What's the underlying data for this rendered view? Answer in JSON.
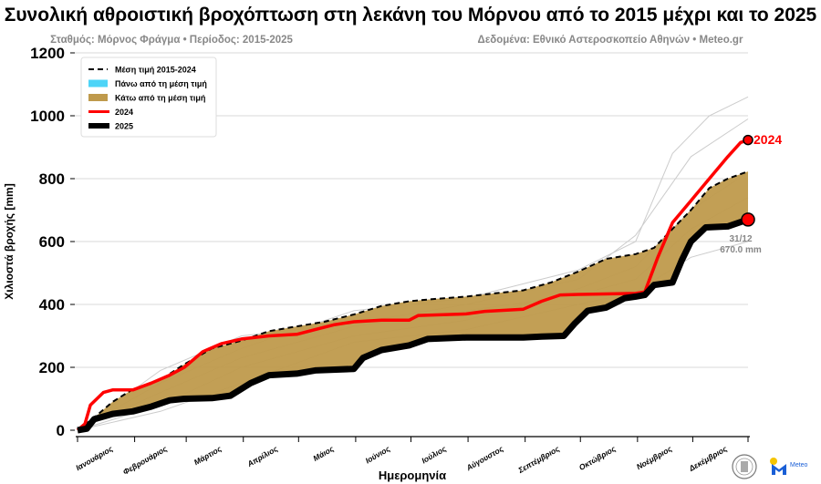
{
  "chart_data": {
    "type": "line",
    "title": "Συνολική αθροιστική βροχόπτωση στη λεκάνη του Μόρνου από το 2015 μέχρι και το 2025",
    "subtitle_left": "Σταθμός: Μόρνος Φράγμα • Περίοδος: 2015-2025",
    "subtitle_right": "Δεδομένα: Εθνικό Αστεροσκοπείο Αθηνών • Meteo.gr",
    "xlabel": "Ημερομηνία",
    "ylabel": "Χιλιοστά βροχής [mm]",
    "ylim": [
      0,
      1200
    ],
    "yticks": [
      0,
      200,
      400,
      600,
      800,
      1000,
      1200
    ],
    "xtick_labels": [
      "Ιανουάριος",
      "Φεβρουάριος",
      "Μάρτιος",
      "Απρίλιος",
      "Μάιος",
      "Ιούνιος",
      "Ιούλιος",
      "Αύγουστος",
      "Σεπτέμβριος",
      "Οκτώβριος",
      "Νοέμβριος",
      "Δεκέμβριος"
    ],
    "grid": "horizontal",
    "legend_position": "top-left",
    "legend": [
      {
        "label": "Μέση τιμή 2015-2024",
        "style": "dashed",
        "color": "#000000"
      },
      {
        "label": "Πάνω από τη μέση τιμή",
        "style": "fill",
        "color": "#4dd4f7"
      },
      {
        "label": "Κάτω από τη μέση τιμή",
        "style": "fill",
        "color": "#bf9a4c"
      },
      {
        "label": "2024",
        "style": "line",
        "color": "#ff0000"
      },
      {
        "label": "2025",
        "style": "line",
        "color": "#000000"
      }
    ],
    "series": [
      {
        "name": "Μέση τιμή 2015-2024",
        "points": [
          [
            "01-01",
            0
          ],
          [
            "01-10",
            40
          ],
          [
            "01-20",
            90
          ],
          [
            "01-31",
            130
          ],
          [
            "02-15",
            160
          ],
          [
            "02-28",
            210
          ],
          [
            "03-15",
            260
          ],
          [
            "03-31",
            285
          ],
          [
            "04-15",
            315
          ],
          [
            "04-30",
            330
          ],
          [
            "05-15",
            345
          ],
          [
            "05-31",
            368
          ],
          [
            "06-15",
            395
          ],
          [
            "06-30",
            410
          ],
          [
            "07-15",
            418
          ],
          [
            "07-31",
            425
          ],
          [
            "08-15",
            435
          ],
          [
            "08-31",
            445
          ],
          [
            "09-15",
            470
          ],
          [
            "09-30",
            505
          ],
          [
            "10-15",
            545
          ],
          [
            "10-31",
            560
          ],
          [
            "11-10",
            580
          ],
          [
            "11-20",
            640
          ],
          [
            "11-30",
            700
          ],
          [
            "12-10",
            770
          ],
          [
            "12-20",
            800
          ],
          [
            "12-31",
            823
          ]
        ]
      },
      {
        "name": "2024",
        "points": [
          [
            "01-01",
            0
          ],
          [
            "01-05",
            20
          ],
          [
            "01-08",
            80
          ],
          [
            "01-15",
            120
          ],
          [
            "01-20",
            128
          ],
          [
            "01-31",
            128
          ],
          [
            "02-10",
            150
          ],
          [
            "02-20",
            175
          ],
          [
            "02-28",
            200
          ],
          [
            "03-10",
            250
          ],
          [
            "03-20",
            275
          ],
          [
            "03-31",
            290
          ],
          [
            "04-15",
            300
          ],
          [
            "04-30",
            305
          ],
          [
            "05-10",
            320
          ],
          [
            "05-20",
            335
          ],
          [
            "05-31",
            345
          ],
          [
            "06-15",
            350
          ],
          [
            "06-30",
            350
          ],
          [
            "07-05",
            365
          ],
          [
            "07-31",
            370
          ],
          [
            "08-10",
            378
          ],
          [
            "08-31",
            385
          ],
          [
            "09-10",
            410
          ],
          [
            "09-20",
            430
          ],
          [
            "09-30",
            432
          ],
          [
            "10-31",
            435
          ],
          [
            "11-05",
            440
          ],
          [
            "11-12",
            550
          ],
          [
            "11-20",
            660
          ],
          [
            "11-30",
            730
          ],
          [
            "12-10",
            800
          ],
          [
            "12-20",
            870
          ],
          [
            "12-27",
            915
          ],
          [
            "12-31",
            923
          ]
        ]
      },
      {
        "name": "2025",
        "points": [
          [
            "01-01",
            0
          ],
          [
            "01-06",
            5
          ],
          [
            "01-10",
            35
          ],
          [
            "01-20",
            52
          ],
          [
            "01-31",
            60
          ],
          [
            "02-10",
            75
          ],
          [
            "02-20",
            95
          ],
          [
            "02-28",
            100
          ],
          [
            "03-15",
            102
          ],
          [
            "03-25",
            110
          ],
          [
            "04-05",
            150
          ],
          [
            "04-15",
            175
          ],
          [
            "04-30",
            180
          ],
          [
            "05-10",
            190
          ],
          [
            "05-31",
            195
          ],
          [
            "06-05",
            230
          ],
          [
            "06-15",
            255
          ],
          [
            "06-30",
            270
          ],
          [
            "07-10",
            290
          ],
          [
            "07-31",
            295
          ],
          [
            "08-31",
            295
          ],
          [
            "09-10",
            298
          ],
          [
            "09-22",
            300
          ],
          [
            "09-28",
            340
          ],
          [
            "10-05",
            380
          ],
          [
            "10-15",
            390
          ],
          [
            "10-25",
            420
          ],
          [
            "10-31",
            425
          ],
          [
            "11-05",
            430
          ],
          [
            "11-10",
            462
          ],
          [
            "11-20",
            470
          ],
          [
            "11-25",
            540
          ],
          [
            "11-30",
            600
          ],
          [
            "12-08",
            645
          ],
          [
            "12-20",
            648
          ],
          [
            "12-31",
            670
          ]
        ]
      }
    ],
    "background_years": [
      [
        [
          "01-01",
          0
        ],
        [
          "02-15",
          150
        ],
        [
          "03-31",
          260
        ],
        [
          "05-31",
          380
        ],
        [
          "07-31",
          420
        ],
        [
          "09-30",
          510
        ],
        [
          "10-31",
          600
        ],
        [
          "11-20",
          880
        ],
        [
          "12-10",
          1000
        ],
        [
          "12-31",
          1060
        ]
      ],
      [
        [
          "01-01",
          0
        ],
        [
          "02-15",
          190
        ],
        [
          "03-31",
          300
        ],
        [
          "05-31",
          340
        ],
        [
          "07-31",
          400
        ],
        [
          "09-30",
          480
        ],
        [
          "10-31",
          620
        ],
        [
          "11-30",
          870
        ],
        [
          "12-31",
          990
        ]
      ],
      [
        [
          "01-01",
          0
        ],
        [
          "02-15",
          80
        ],
        [
          "03-31",
          200
        ],
        [
          "05-31",
          300
        ],
        [
          "07-31",
          350
        ],
        [
          "09-30",
          450
        ],
        [
          "10-31",
          520
        ],
        [
          "11-30",
          700
        ],
        [
          "12-31",
          820
        ]
      ],
      [
        [
          "01-01",
          0
        ],
        [
          "02-15",
          120
        ],
        [
          "03-31",
          230
        ],
        [
          "05-31",
          330
        ],
        [
          "07-31",
          380
        ],
        [
          "09-30",
          430
        ],
        [
          "10-31",
          480
        ],
        [
          "11-30",
          640
        ],
        [
          "12-31",
          740
        ]
      ],
      [
        [
          "01-01",
          0
        ],
        [
          "02-15",
          60
        ],
        [
          "03-31",
          150
        ],
        [
          "05-31",
          280
        ],
        [
          "07-31",
          320
        ],
        [
          "09-30",
          400
        ],
        [
          "10-31",
          440
        ],
        [
          "11-30",
          550
        ],
        [
          "12-31",
          600
        ]
      ]
    ],
    "annotations": {
      "label_2024": "2024",
      "end_date": "31/12",
      "end_value": "670.0 mm"
    },
    "colors": {
      "mean": "#000000",
      "y2024": "#ff0000",
      "y2025": "#000000",
      "below": "#bf9a4c",
      "above": "#4dd4f7",
      "history": "#cccccc",
      "grid": "#d9d9d9"
    }
  }
}
